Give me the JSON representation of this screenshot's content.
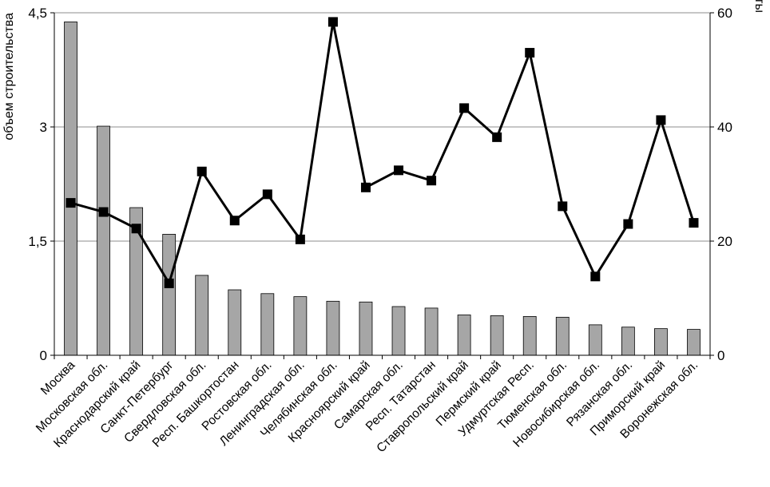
{
  "chart_data": {
    "type": "bar",
    "title": "",
    "categories": [
      "Москва",
      "Московская обл.",
      "Краснодарский край",
      "Санкт-Петербург",
      "Свердловская обл.",
      "Респ. Башкортостан",
      "Ростовская обл.",
      "Ленинградская обл.",
      "Челябинская обл.",
      "Красноярский край",
      "Самарская обл.",
      "Респ. Татарстан",
      "Ставропольский край",
      "Пермский край",
      "Удмуртская Респ.",
      "Тюменская обл.",
      "Новосибирская обл.",
      "Рязанская обл.",
      "Приморский край",
      "Воронежская обл."
    ],
    "series": [
      {
        "type": "bar",
        "axis": "left",
        "color": "#a6a6a6",
        "values": [
          4.38,
          3.01,
          1.94,
          1.59,
          1.05,
          0.86,
          0.81,
          0.77,
          0.71,
          0.7,
          0.64,
          0.62,
          0.53,
          0.52,
          0.51,
          0.5,
          0.4,
          0.37,
          0.35,
          0.34
        ]
      },
      {
        "type": "line",
        "axis": "right",
        "color": "#000000",
        "values": [
          26.7,
          25.1,
          22.2,
          12.6,
          32.2,
          23.6,
          28.2,
          20.3,
          58.4,
          29.4,
          32.4,
          30.6,
          43.3,
          38.2,
          53.0,
          26.1,
          13.8,
          23.0,
          41.2,
          23.2
        ]
      }
    ],
    "y_left": {
      "label": "объем строительства",
      "ylim": [
        0,
        4.5
      ],
      "ticks": [
        0,
        1.5,
        3,
        4.5
      ],
      "tick_labels": [
        "0",
        "1,5",
        "3",
        "4,5"
      ]
    },
    "y_right": {
      "label": "проценты",
      "ylim": [
        0,
        60
      ],
      "ticks": [
        0,
        20,
        40,
        60
      ],
      "tick_labels": [
        "0",
        "20",
        "40",
        "60"
      ]
    },
    "grid": true,
    "legend": "none"
  }
}
